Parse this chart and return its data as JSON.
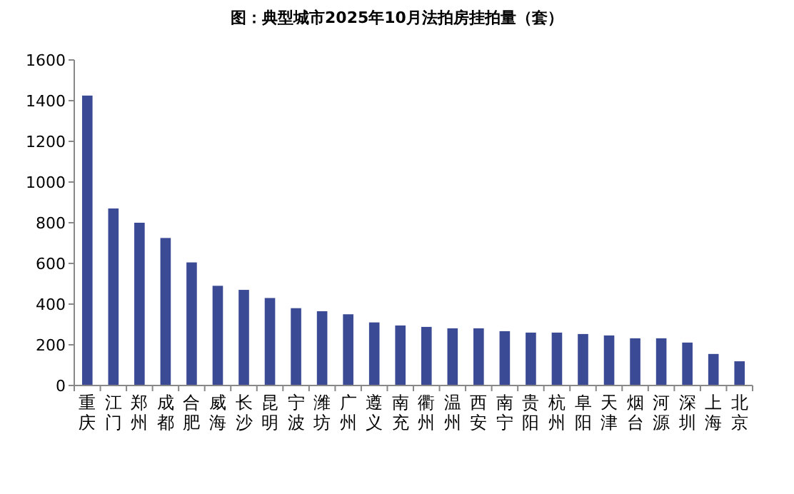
{
  "chart_data": {
    "type": "bar",
    "title": "图：典型城市2025年10月法拍房挂拍量（套）",
    "categories": [
      "重庆",
      "江门",
      "郑州",
      "成都",
      "合肥",
      "威海",
      "长沙",
      "昆明",
      "宁波",
      "潍坊",
      "广州",
      "遵义",
      "南充",
      "衢州",
      "温州",
      "西安",
      "南宁",
      "贵阳",
      "杭州",
      "阜阳",
      "天津",
      "烟台",
      "河源",
      "深圳",
      "上海",
      "北京"
    ],
    "values": [
      1425,
      870,
      800,
      725,
      605,
      490,
      470,
      430,
      380,
      365,
      350,
      310,
      295,
      288,
      281,
      281,
      267,
      260,
      260,
      253,
      246,
      232,
      232,
      211,
      155,
      119
    ],
    "color": "#3b4a94",
    "ylim": [
      0,
      1600
    ],
    "yticks": [
      0,
      200,
      400,
      600,
      800,
      1000,
      1200,
      1400,
      1600
    ],
    "grid": false
  }
}
